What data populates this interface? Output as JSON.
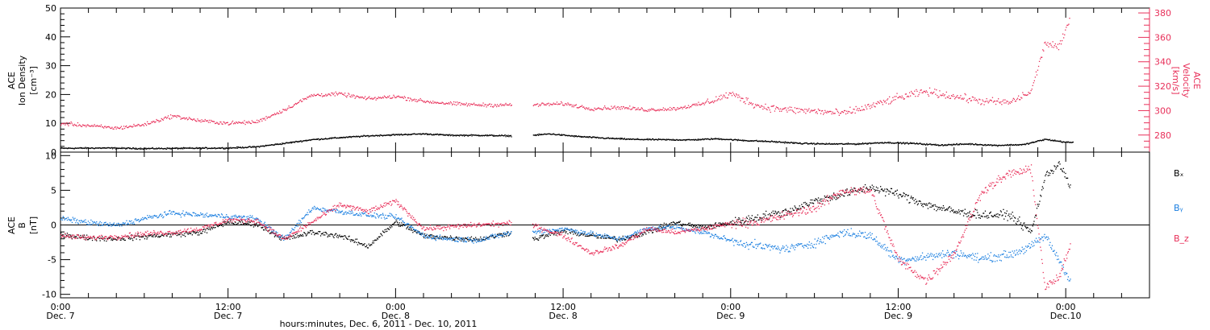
{
  "colors": {
    "black": "#000000",
    "pink": "#e8305a",
    "blue": "#1b7fe0"
  },
  "panel_top": {
    "ylabel_lines": [
      "ACE",
      "Ion Density",
      "[cm⁻³]"
    ],
    "ylabel2_lines": [
      "ACE",
      "Velocity",
      "[km/s]"
    ]
  },
  "panel_bottom": {
    "ylabel_lines": [
      "ACE",
      "B",
      "[nT]"
    ],
    "legend": [
      {
        "text": "Bₓ",
        "color": "#000000"
      },
      {
        "text": "Bᵧ",
        "color": "#1b7fe0"
      },
      {
        "text": "B_z",
        "color": "#e8305a"
      }
    ]
  },
  "x_axis": {
    "title": "hours:minutes, Dec. 6, 2011 - Dec. 10, 2011",
    "ticks": [
      {
        "t": 0,
        "line1": "0:00",
        "line2": "Dec. 7"
      },
      {
        "t": 12,
        "line1": "12:00",
        "line2": "Dec. 7"
      },
      {
        "t": 24,
        "line1": "0:00",
        "line2": "Dec. 8"
      },
      {
        "t": 36,
        "line1": "12:00",
        "line2": "Dec. 8"
      },
      {
        "t": 48,
        "line1": "0:00",
        "line2": "Dec. 9"
      },
      {
        "t": 60,
        "line1": "12:00",
        "line2": "Dec. 9"
      },
      {
        "t": 72,
        "line1": "0:00",
        "line2": "Dec.10"
      }
    ]
  },
  "chart_data": [
    {
      "type": "scatter",
      "x_units": "hours from Dec. 7 0:00 (2011)",
      "xlim": [
        0,
        78
      ],
      "ylim": [
        0,
        50
      ],
      "y2lim": [
        266,
        384
      ],
      "yticks": [
        0,
        10,
        20,
        30,
        40,
        50
      ],
      "y2ticks": [
        280,
        300,
        320,
        340,
        360,
        380
      ],
      "series": [
        {
          "color": "#000000",
          "axis": "left",
          "gap": [
            32.3,
            33.8
          ],
          "x": [
            0,
            3,
            6,
            9,
            12,
            14,
            16,
            18,
            20,
            22,
            24,
            26,
            28,
            30,
            32.3,
            33.8,
            35,
            37,
            39,
            41,
            43,
            45,
            47,
            49,
            51,
            53,
            55,
            57,
            59,
            61,
            63,
            65,
            67,
            69,
            70.5,
            72,
            72.5
          ],
          "y": [
            1.5,
            1.6,
            1.4,
            1.5,
            1.6,
            2.0,
            3.2,
            4.5,
            5.2,
            5.8,
            6.2,
            6.5,
            6.0,
            6.0,
            5.8,
            6.0,
            6.5,
            5.6,
            5.0,
            4.6,
            4.5,
            4.4,
            4.8,
            4.2,
            3.8,
            3.2,
            3.0,
            3.0,
            3.5,
            3.2,
            2.6,
            3.0,
            2.5,
            2.8,
            4.6,
            3.6,
            3.5
          ]
        },
        {
          "color": "#e8305a",
          "axis": "right",
          "gap": [
            32.3,
            33.8
          ],
          "x": [
            0,
            2,
            4,
            6,
            8,
            10,
            12,
            14,
            16,
            18,
            20,
            22,
            24,
            26,
            28,
            30,
            32.3,
            33.8,
            36,
            38,
            40,
            42,
            44,
            46,
            48,
            50,
            52,
            54,
            56,
            58,
            60,
            62,
            64,
            66,
            68,
            69.5,
            70.5,
            71.5,
            72.3
          ],
          "y": [
            290,
            288,
            286,
            289,
            296,
            292,
            290,
            291,
            301,
            313,
            314,
            310,
            312,
            308,
            306,
            305,
            305,
            305,
            306,
            302,
            303,
            301,
            302,
            306,
            314,
            304,
            301,
            300,
            298,
            304,
            311,
            316,
            312,
            308,
            307,
            316,
            356,
            352,
            376
          ]
        }
      ]
    },
    {
      "type": "scatter",
      "x_units": "hours from Dec. 7 0:00 (2011)",
      "xlim": [
        0,
        78
      ],
      "ylim": [
        -10.5,
        10.5
      ],
      "yticks": [
        -10,
        -5,
        0,
        5,
        10
      ],
      "zero_line": true,
      "series": [
        {
          "color": "#000000",
          "gap": [
            32.3,
            33.8
          ],
          "x": [
            0,
            2,
            4,
            6,
            8,
            10,
            12,
            14,
            16,
            18,
            20,
            22,
            24,
            26,
            28,
            30,
            32.3,
            33.8,
            36,
            38,
            40,
            42,
            44,
            46,
            48,
            50,
            52,
            54,
            56,
            58,
            60,
            62,
            64,
            66,
            68,
            69.5,
            70.5,
            71.5,
            72.3
          ],
          "y": [
            -1.3,
            -1.8,
            -1.9,
            -1.6,
            -1.3,
            -1.0,
            0.5,
            0.2,
            -2.0,
            -1.0,
            -1.5,
            -3.0,
            0.5,
            -1.5,
            -1.8,
            -2.0,
            -1.0,
            -2.0,
            -0.8,
            -1.5,
            -2.0,
            -1.0,
            0.4,
            -0.3,
            0.4,
            1.2,
            2.0,
            3.5,
            4.5,
            5.5,
            4.5,
            3.0,
            2.0,
            1.5,
            1.5,
            -1.0,
            7.0,
            9.0,
            5.5
          ]
        },
        {
          "color": "#1b7fe0",
          "gap": [
            32.3,
            33.8
          ],
          "x": [
            0,
            2,
            4,
            6,
            8,
            10,
            12,
            14,
            16,
            18,
            20,
            22,
            24,
            26,
            28,
            30,
            32.3,
            33.8,
            36,
            38,
            40,
            42,
            44,
            46,
            48,
            50,
            52,
            54,
            56,
            58,
            60,
            62,
            64,
            66,
            68,
            69.5,
            70.5,
            71.5,
            72.3
          ],
          "y": [
            1.0,
            0.4,
            0.0,
            1.0,
            1.8,
            1.5,
            1.3,
            1.0,
            -2.0,
            2.5,
            2.0,
            1.5,
            1.2,
            -1.5,
            -2.0,
            -2.1,
            -1.0,
            -1.0,
            -0.5,
            -1.2,
            -2.0,
            -0.5,
            -0.2,
            -1.0,
            -2.2,
            -3.0,
            -3.4,
            -2.5,
            -1.0,
            -1.5,
            -5.0,
            -4.5,
            -4.0,
            -4.8,
            -4.2,
            -3.0,
            -1.5,
            -5.0,
            -8.0
          ]
        },
        {
          "color": "#e8305a",
          "gap": [
            32.3,
            33.8
          ],
          "x": [
            0,
            2,
            4,
            6,
            8,
            10,
            12,
            14,
            16,
            18,
            20,
            22,
            24,
            26,
            28,
            30,
            32.3,
            33.8,
            36,
            38,
            40,
            42,
            44,
            46,
            48,
            50,
            52,
            54,
            56,
            58,
            60,
            62,
            64,
            66,
            68,
            69.5,
            70.5,
            71.5,
            72.3
          ],
          "y": [
            -1.5,
            -1.8,
            -1.6,
            -1.2,
            -1.0,
            -0.5,
            0.8,
            0.7,
            -2.0,
            0.5,
            3.0,
            2.0,
            3.5,
            -0.5,
            -0.2,
            0.1,
            0.3,
            0.0,
            -1.5,
            -4.0,
            -3.0,
            -0.5,
            -1.0,
            -0.5,
            0.3,
            0.5,
            1.5,
            2.5,
            5.0,
            5.0,
            -5.0,
            -8.0,
            -4.0,
            5.0,
            7.5,
            8.0,
            -9.0,
            -7.5,
            -3.0
          ]
        }
      ]
    }
  ]
}
